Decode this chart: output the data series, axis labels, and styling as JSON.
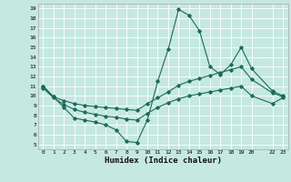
{
  "xlabel": "Humidex (Indice chaleur)",
  "bg_color": "#c5e8e0",
  "grid_color": "#ffffff",
  "line_color": "#1a6b5a",
  "xlim": [
    -0.5,
    23.5
  ],
  "ylim": [
    4.5,
    19.5
  ],
  "xticks": [
    0,
    1,
    2,
    3,
    4,
    5,
    6,
    7,
    8,
    9,
    10,
    11,
    12,
    13,
    14,
    15,
    16,
    17,
    18,
    19,
    20,
    22,
    23
  ],
  "yticks": [
    5,
    6,
    7,
    8,
    9,
    10,
    11,
    12,
    13,
    14,
    15,
    16,
    17,
    18,
    19
  ],
  "line1_x": [
    0,
    1,
    2,
    3,
    4,
    5,
    6,
    7,
    8,
    9,
    10,
    11,
    12,
    13,
    14,
    15,
    16,
    17,
    18,
    19,
    20,
    22,
    23
  ],
  "line1_y": [
    11.0,
    9.9,
    8.8,
    7.7,
    7.5,
    7.3,
    7.0,
    6.5,
    5.3,
    5.2,
    7.5,
    11.5,
    14.8,
    18.9,
    18.3,
    16.7,
    13.0,
    12.2,
    13.2,
    15.0,
    12.8,
    10.5,
    10.0
  ],
  "line2_x": [
    0,
    1,
    2,
    3,
    4,
    5,
    6,
    7,
    8,
    9,
    10,
    11,
    12,
    13,
    14,
    15,
    16,
    17,
    18,
    19,
    20,
    22,
    23
  ],
  "line2_y": [
    11.0,
    9.9,
    9.5,
    9.2,
    9.0,
    8.9,
    8.8,
    8.7,
    8.6,
    8.5,
    9.2,
    9.8,
    10.4,
    11.1,
    11.5,
    11.8,
    12.1,
    12.4,
    12.7,
    13.0,
    11.7,
    10.3,
    9.9
  ],
  "line3_x": [
    0,
    1,
    2,
    3,
    4,
    5,
    6,
    7,
    8,
    9,
    10,
    11,
    12,
    13,
    14,
    15,
    16,
    17,
    18,
    19,
    20,
    22,
    23
  ],
  "line3_y": [
    10.8,
    9.8,
    9.1,
    8.6,
    8.3,
    8.1,
    7.9,
    7.8,
    7.6,
    7.5,
    8.2,
    8.8,
    9.3,
    9.7,
    10.0,
    10.2,
    10.4,
    10.6,
    10.8,
    11.0,
    10.0,
    9.2,
    9.8
  ]
}
